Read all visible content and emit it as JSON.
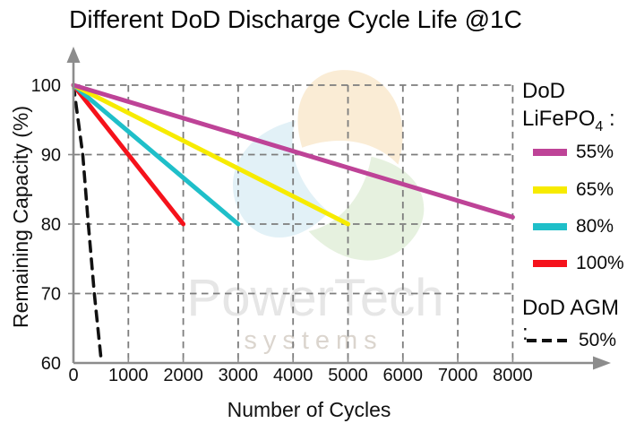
{
  "title": "Different DoD Discharge Cycle Life @1C",
  "axes": {
    "xlabel": "Number of Cycles",
    "ylabel": "Remaining Capacity (%)"
  },
  "watermark": {
    "name": "PowerTech",
    "tagline": "systems"
  },
  "legend": {
    "lifepo4_title_line1": "DoD",
    "lifepo4_title_prefix": "LiFePO",
    "lifepo4_title_sub": "4",
    "lifepo4_title_suffix": " :",
    "items": [
      {
        "label": "55%"
      },
      {
        "label": "65%"
      },
      {
        "label": "80%"
      },
      {
        "label": "100%"
      }
    ],
    "agm_title": "DoD AGM :",
    "agm_item": {
      "label": "50%"
    }
  },
  "chart_data": {
    "type": "line",
    "title": "Different DoD Discharge Cycle Life @1C",
    "xlabel": "Number of Cycles",
    "ylabel": "Remaining Capacity (%)",
    "xlim": [
      0,
      8300
    ],
    "ylim": [
      60,
      103
    ],
    "x_ticks": [
      0,
      1000,
      2000,
      3000,
      4000,
      5000,
      6000,
      7000,
      8000
    ],
    "y_ticks": [
      100,
      90,
      80,
      70,
      60
    ],
    "grid": "dashed-both-directions",
    "legend_position": "right-outside",
    "series": [
      {
        "name": "DoD LiFePO4 55%",
        "color": "#BE4397",
        "dash": "solid",
        "points": [
          [
            0,
            100
          ],
          [
            8000,
            81
          ]
        ]
      },
      {
        "name": "DoD LiFePO4 65%",
        "color": "#F7EB00",
        "dash": "solid",
        "points": [
          [
            0,
            100
          ],
          [
            5000,
            80
          ]
        ]
      },
      {
        "name": "DoD LiFePO4 80%",
        "color": "#1FBFC9",
        "dash": "solid",
        "points": [
          [
            0,
            100
          ],
          [
            3000,
            80
          ]
        ]
      },
      {
        "name": "DoD LiFePO4 100%",
        "color": "#F5121B",
        "dash": "solid",
        "points": [
          [
            0,
            100
          ],
          [
            2000,
            80
          ]
        ]
      },
      {
        "name": "DoD AGM 50%",
        "color": "#111111",
        "dash": "dashed",
        "points": [
          [
            0,
            100
          ],
          [
            170,
            90
          ],
          [
            270,
            80
          ],
          [
            380,
            70
          ],
          [
            510,
            60
          ]
        ]
      }
    ]
  },
  "style": {
    "axis_color": "#8C8C8C",
    "grid_color": "#7D7D7D",
    "text_color": "#111111",
    "watermark_name_color": "#E6E6E6",
    "watermark_tagline_color": "#DBD5CE",
    "petal_colors": [
      "#F7E0B9",
      "#D5E7CA",
      "#CEE7F2"
    ]
  }
}
